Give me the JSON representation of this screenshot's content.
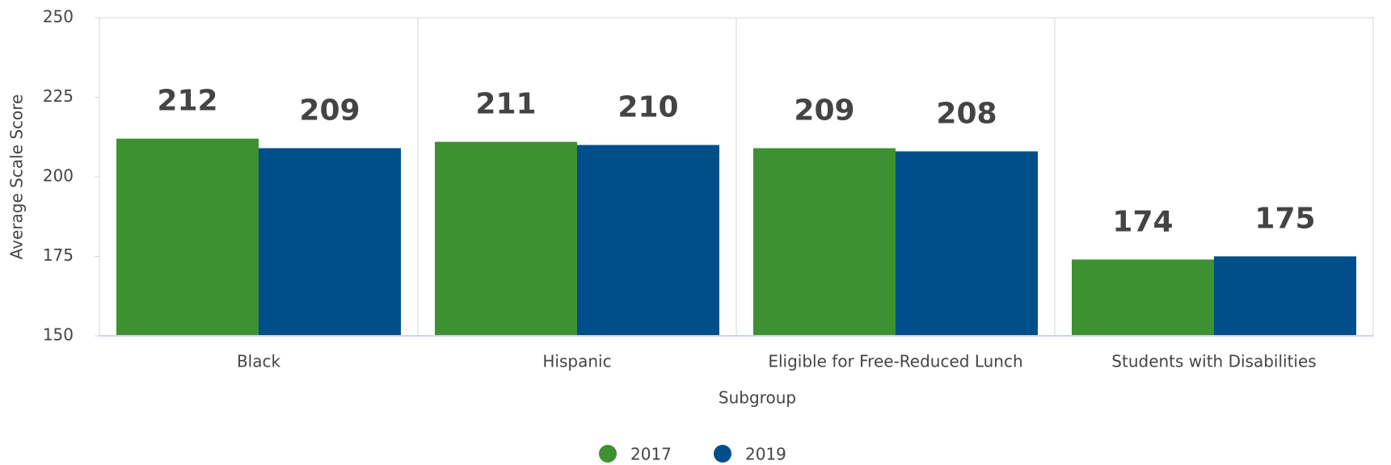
{
  "chart_data": {
    "type": "bar",
    "x_label": "Subgroup",
    "y_label": "Average Scale Score",
    "categories": [
      "Black",
      "Hispanic",
      "Eligible for Free-Reduced Lunch",
      "Students with Disabilities"
    ],
    "series": [
      {
        "name": "2017",
        "color": "#3d9130",
        "values": [
          212,
          211,
          209,
          174
        ]
      },
      {
        "name": "2019",
        "color": "#004f8b",
        "values": [
          209,
          210,
          208,
          175
        ]
      }
    ],
    "ylim": [
      150,
      250
    ],
    "yticks": [
      150,
      175,
      200,
      225,
      250
    ],
    "legend": "bottom"
  }
}
